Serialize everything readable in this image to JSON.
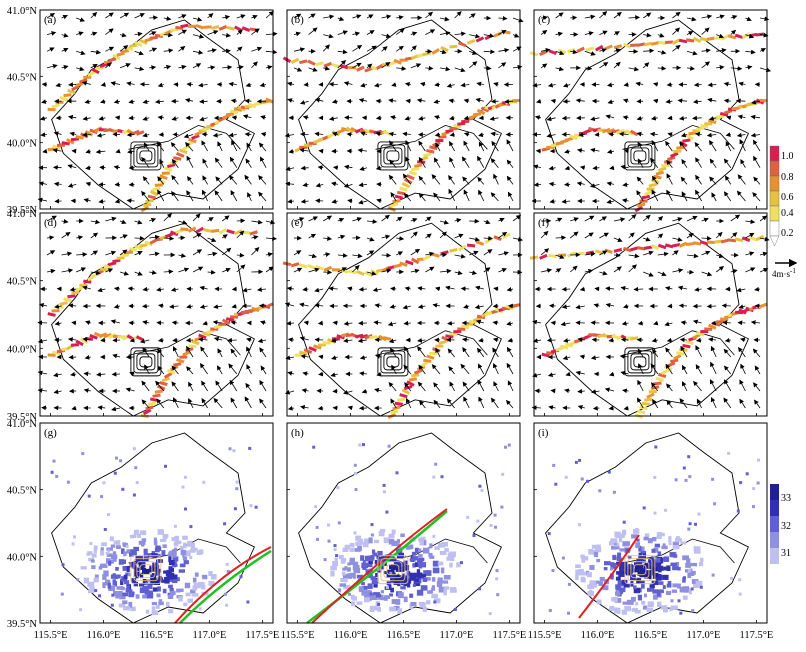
{
  "figure": {
    "panel_labels": [
      "(a)",
      "(b)",
      "(c)",
      "(d)",
      "(e)",
      "(f)",
      "(g)",
      "(h)",
      "(i)"
    ],
    "lat_ticks": [
      "41.0°N",
      "40.5°N",
      "40.0°N",
      "39.5°N"
    ],
    "lon_ticks": [
      "115.5°E",
      "116.0°E",
      "116.5°E",
      "117.0°E",
      "117.5°E"
    ]
  },
  "colorbar_front": {
    "ticks": [
      "1.0",
      "0.8",
      "0.6",
      "0.4",
      "0.2"
    ],
    "colors": [
      "#ffffff",
      "#f0e060",
      "#e8c040",
      "#e89030",
      "#e06040",
      "#d82050"
    ]
  },
  "wind_reference": {
    "label_main": "4m",
    "label_unit": "·s",
    "label_exp": "-1"
  },
  "colorbar_temp": {
    "ticks": [
      "33",
      "32",
      "31"
    ],
    "colors": [
      "#c0c0f0",
      "#9090e0",
      "#6060d0",
      "#3030b0",
      "#202090"
    ]
  },
  "chart_data": {
    "type": "heatmap",
    "panels": [
      "a",
      "b",
      "c",
      "d",
      "e",
      "f",
      "g",
      "h",
      "i"
    ],
    "rows": 3,
    "cols": 3,
    "x_range_lon": [
      115.4,
      117.6
    ],
    "y_range_lat": [
      39.5,
      41.0
    ],
    "x_ticks_lon": [
      115.5,
      116.0,
      116.5,
      117.0,
      117.5
    ],
    "y_ticks_lat": [
      39.5,
      40.0,
      40.5,
      41.0
    ],
    "front_colorbar_range": [
      0.2,
      1.0
    ],
    "temperature_colorbar": [
      31,
      32,
      33
    ],
    "wind_reference_speed_ms": 4,
    "trajectory_colors": [
      "#e02020",
      "#20c020"
    ]
  }
}
